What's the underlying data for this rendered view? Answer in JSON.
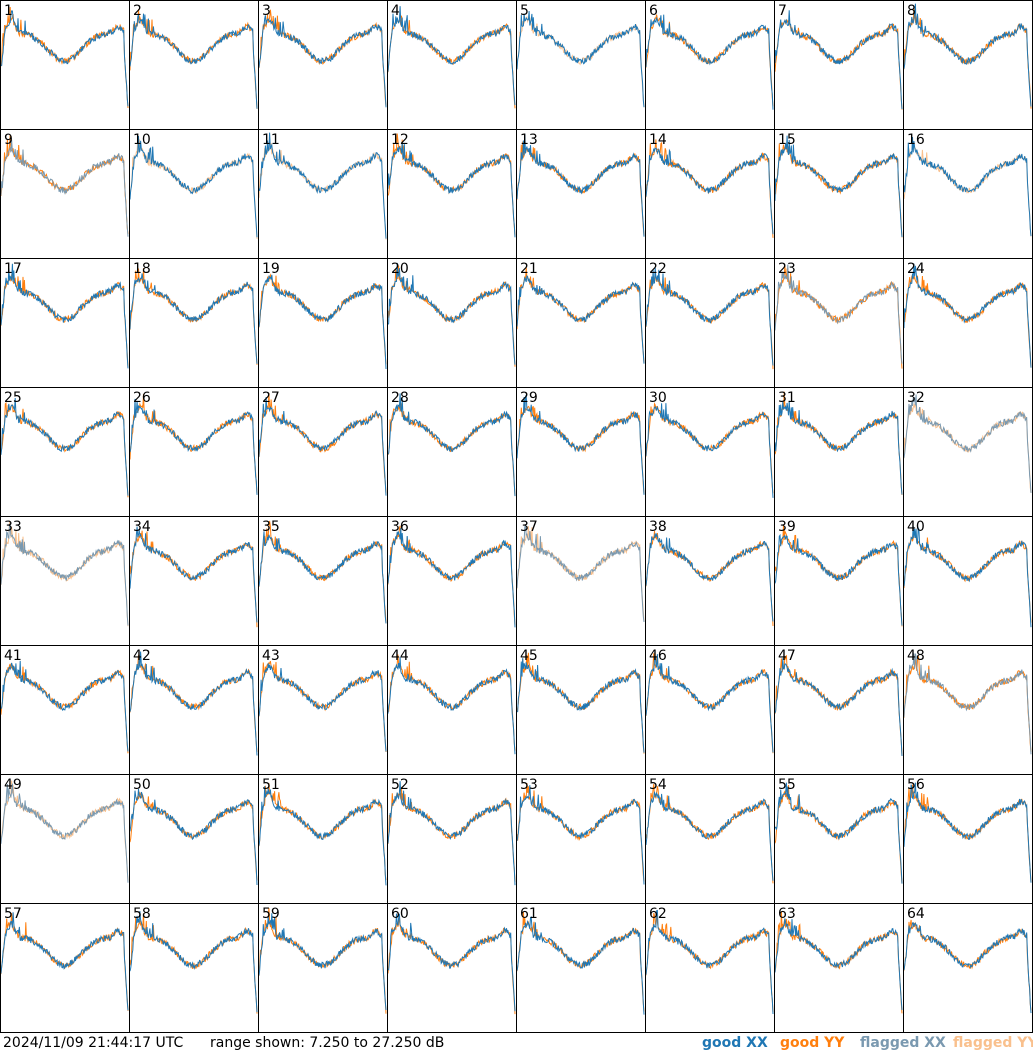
{
  "chart_data": {
    "type": "line",
    "layout": "8x8 small multiples",
    "range_db": [
      7.25,
      27.25
    ],
    "colors": {
      "good_xx": "#1f77b4",
      "good_yy": "#ff7f0e",
      "flagged_xx": "#7a99b0",
      "flagged_yy": "#f9c08d"
    },
    "panels": [
      {
        "id": "1",
        "xx": "good",
        "yy": "good"
      },
      {
        "id": "2",
        "xx": "good",
        "yy": "good"
      },
      {
        "id": "3",
        "xx": "good",
        "yy": "good"
      },
      {
        "id": "4",
        "xx": "good",
        "yy": "good"
      },
      {
        "id": "5",
        "xx": "good",
        "yy": "flagged"
      },
      {
        "id": "6",
        "xx": "good",
        "yy": "good"
      },
      {
        "id": "7",
        "xx": "good",
        "yy": "good"
      },
      {
        "id": "8",
        "xx": "good",
        "yy": "good"
      },
      {
        "id": "9",
        "xx": "flagged",
        "yy": "good"
      },
      {
        "id": "10",
        "xx": "good",
        "yy": "flagged"
      },
      {
        "id": "11",
        "xx": "good",
        "yy": "flagged"
      },
      {
        "id": "12",
        "xx": "good",
        "yy": "good"
      },
      {
        "id": "13",
        "xx": "good",
        "yy": "good"
      },
      {
        "id": "14",
        "xx": "good",
        "yy": "good"
      },
      {
        "id": "15",
        "xx": "good",
        "yy": "good"
      },
      {
        "id": "16",
        "xx": "good",
        "yy": "flagged"
      },
      {
        "id": "17",
        "xx": "good",
        "yy": "good"
      },
      {
        "id": "18",
        "xx": "good",
        "yy": "good"
      },
      {
        "id": "19",
        "xx": "good",
        "yy": "good"
      },
      {
        "id": "20",
        "xx": "good",
        "yy": "good"
      },
      {
        "id": "21",
        "xx": "good",
        "yy": "good"
      },
      {
        "id": "22",
        "xx": "good",
        "yy": "good"
      },
      {
        "id": "23",
        "xx": "flagged",
        "yy": "good"
      },
      {
        "id": "24",
        "xx": "good",
        "yy": "good"
      },
      {
        "id": "25",
        "xx": "good",
        "yy": "good"
      },
      {
        "id": "26",
        "xx": "good",
        "yy": "good"
      },
      {
        "id": "27",
        "xx": "good",
        "yy": "good"
      },
      {
        "id": "28",
        "xx": "good",
        "yy": "good"
      },
      {
        "id": "29",
        "xx": "good",
        "yy": "good"
      },
      {
        "id": "30",
        "xx": "good",
        "yy": "good"
      },
      {
        "id": "31",
        "xx": "good",
        "yy": "good"
      },
      {
        "id": "32",
        "xx": "flagged",
        "yy": "flagged"
      },
      {
        "id": "33",
        "xx": "flagged",
        "yy": "flagged"
      },
      {
        "id": "34",
        "xx": "good",
        "yy": "good"
      },
      {
        "id": "35",
        "xx": "good",
        "yy": "good"
      },
      {
        "id": "36",
        "xx": "good",
        "yy": "good"
      },
      {
        "id": "37",
        "xx": "flagged",
        "yy": "flagged"
      },
      {
        "id": "38",
        "xx": "good",
        "yy": "good"
      },
      {
        "id": "39",
        "xx": "good",
        "yy": "good"
      },
      {
        "id": "40",
        "xx": "good",
        "yy": "good"
      },
      {
        "id": "41",
        "xx": "good",
        "yy": "good"
      },
      {
        "id": "42",
        "xx": "good",
        "yy": "good"
      },
      {
        "id": "43",
        "xx": "good",
        "yy": "good"
      },
      {
        "id": "44",
        "xx": "good",
        "yy": "good"
      },
      {
        "id": "45",
        "xx": "good",
        "yy": "good"
      },
      {
        "id": "46",
        "xx": "good",
        "yy": "good"
      },
      {
        "id": "47",
        "xx": "good",
        "yy": "good"
      },
      {
        "id": "48",
        "xx": "flagged",
        "yy": "good"
      },
      {
        "id": "49",
        "xx": "flagged",
        "yy": "flagged"
      },
      {
        "id": "50",
        "xx": "good",
        "yy": "good"
      },
      {
        "id": "51",
        "xx": "good",
        "yy": "good"
      },
      {
        "id": "52",
        "xx": "good",
        "yy": "good"
      },
      {
        "id": "53",
        "xx": "good",
        "yy": "good"
      },
      {
        "id": "54",
        "xx": "good",
        "yy": "good"
      },
      {
        "id": "55",
        "xx": "good",
        "yy": "good"
      },
      {
        "id": "56",
        "xx": "good",
        "yy": "good"
      },
      {
        "id": "57",
        "xx": "good",
        "yy": "good"
      },
      {
        "id": "58",
        "xx": "good",
        "yy": "good"
      },
      {
        "id": "59",
        "xx": "good",
        "yy": "good"
      },
      {
        "id": "60",
        "xx": "good",
        "yy": "good"
      },
      {
        "id": "61",
        "xx": "good",
        "yy": "good"
      },
      {
        "id": "62",
        "xx": "good",
        "yy": "good"
      },
      {
        "id": "63",
        "xx": "good",
        "yy": "good"
      },
      {
        "id": "64",
        "xx": "good",
        "yy": "good"
      }
    ]
  },
  "footer": {
    "timestamp": "2024/11/09 21:44:17 UTC",
    "range": "range shown: 7.250 to 27.250 dB",
    "legend": [
      {
        "label": "good XX",
        "color": "#1f77b4"
      },
      {
        "label": "good YY",
        "color": "#ff7f0e"
      },
      {
        "label": "flagged XX",
        "color": "#7a99b0"
      },
      {
        "label": "flagged YY",
        "color": "#f9c08d"
      }
    ]
  }
}
